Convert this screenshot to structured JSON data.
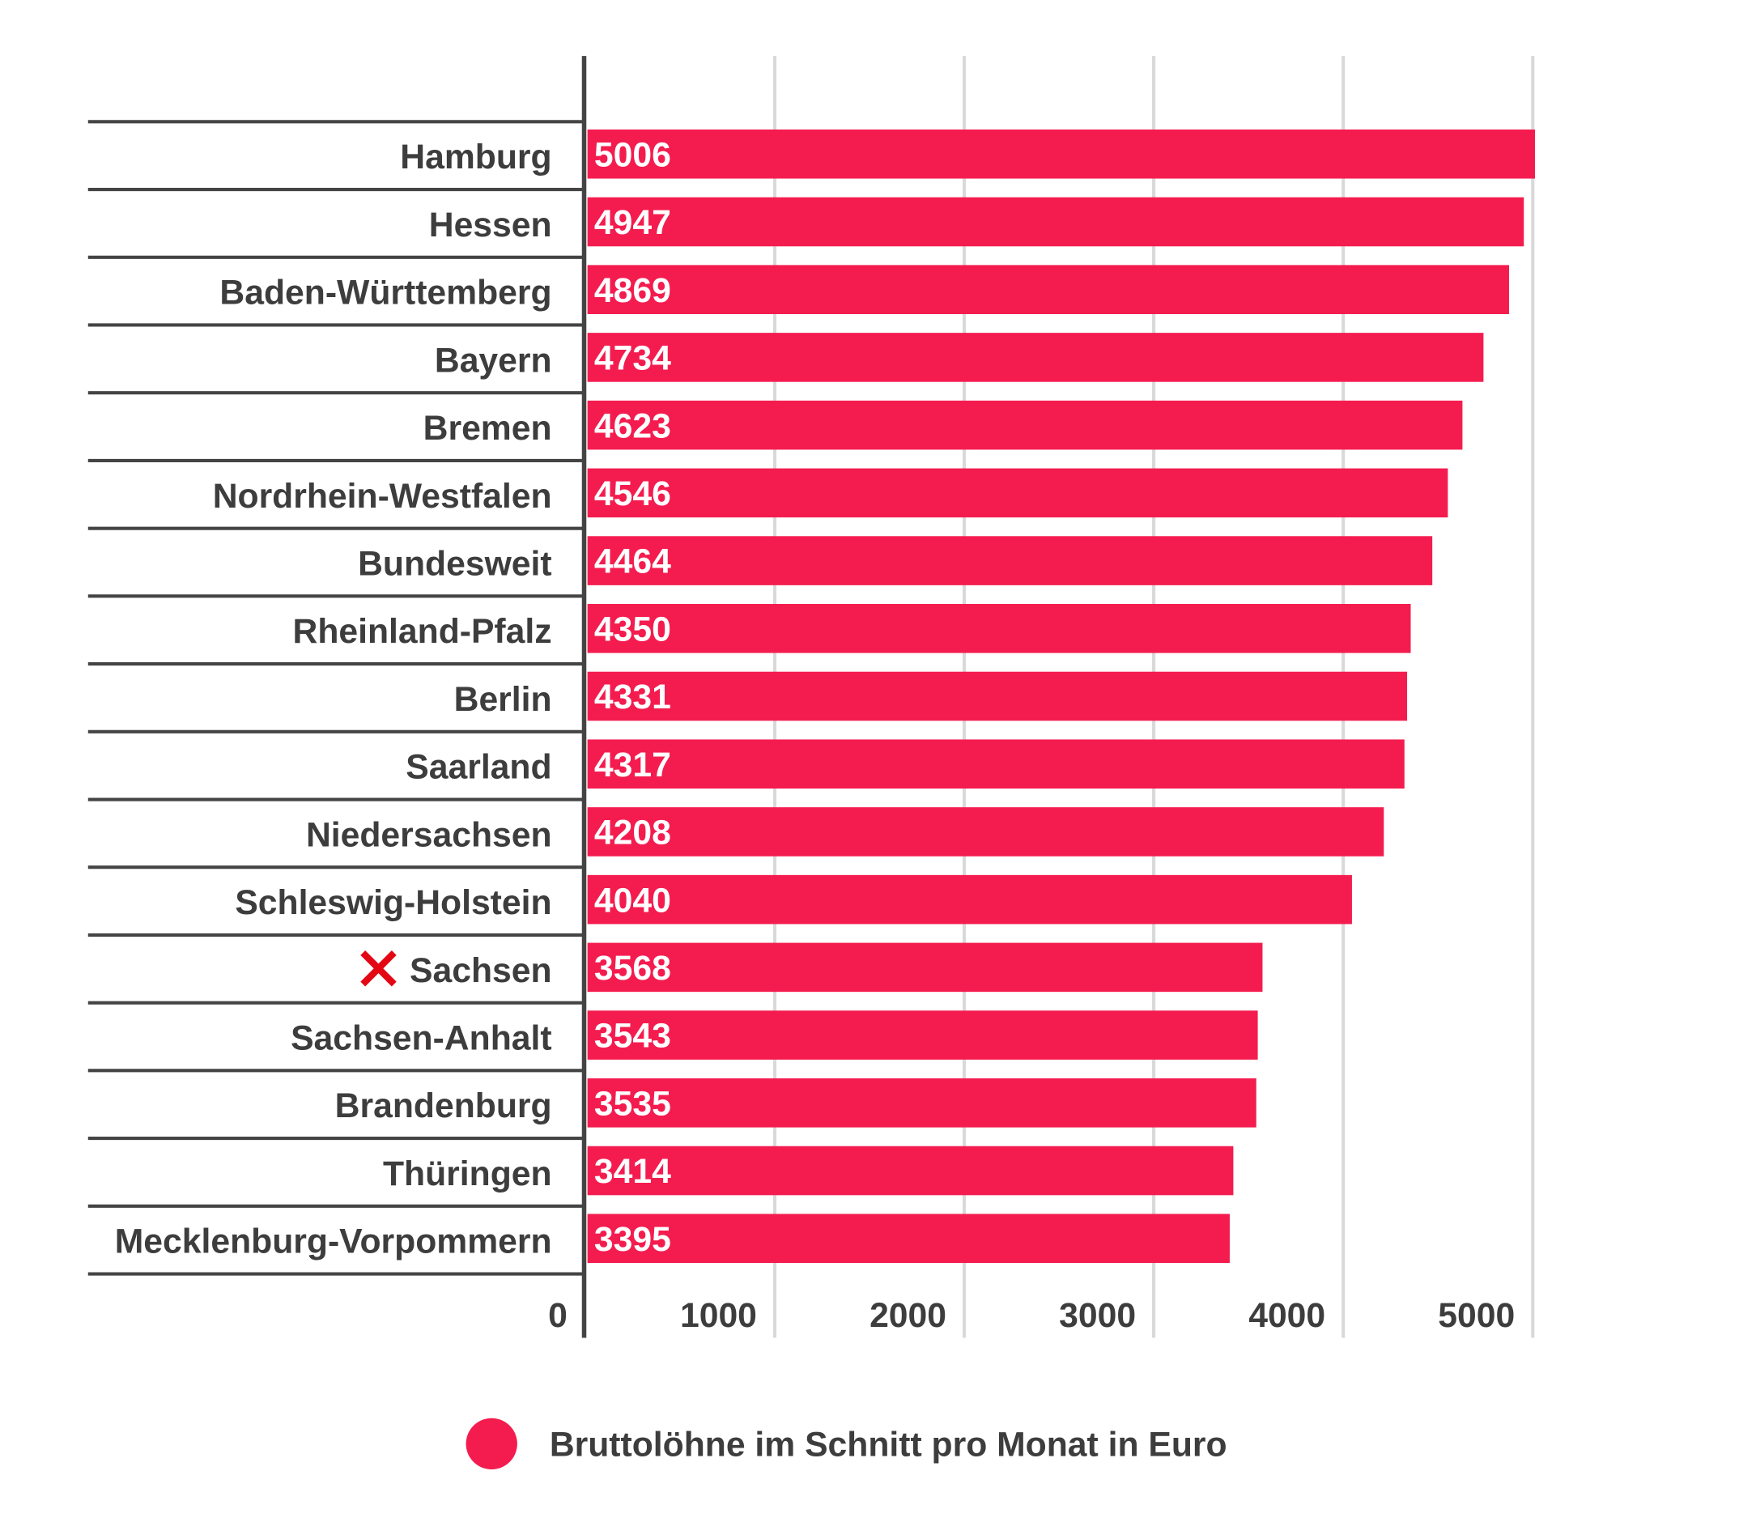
{
  "chart_data": {
    "type": "bar",
    "orientation": "horizontal",
    "categories": [
      "Hamburg",
      "Hessen",
      "Baden-Württemberg",
      "Bayern",
      "Bremen",
      "Nordrhein-Westfalen",
      "Bundesweit",
      "Rheinland-Pfalz",
      "Berlin",
      "Saarland",
      "Niedersachsen",
      "Schleswig-Holstein",
      "Sachsen",
      "Sachsen-Anhalt",
      "Brandenburg",
      "Thüringen",
      "Mecklenburg-Vorpommern"
    ],
    "values": [
      5006,
      4947,
      4869,
      4734,
      4623,
      4546,
      4464,
      4350,
      4331,
      4317,
      4208,
      4040,
      3568,
      3543,
      3535,
      3414,
      3395
    ],
    "marked_category": "Sachsen",
    "marker_icon": "red-x-icon",
    "xlim": [
      0,
      5000
    ],
    "xticks": [
      0,
      1000,
      2000,
      3000,
      4000,
      5000
    ],
    "grid": true,
    "legend": {
      "position": "bottom",
      "entries": [
        "Bruttolöhne im Schnitt pro Monat in Euro"
      ]
    },
    "colors": {
      "bar": "#f41c4f",
      "marker": "#e30613",
      "text": "#3d3d3d"
    }
  }
}
